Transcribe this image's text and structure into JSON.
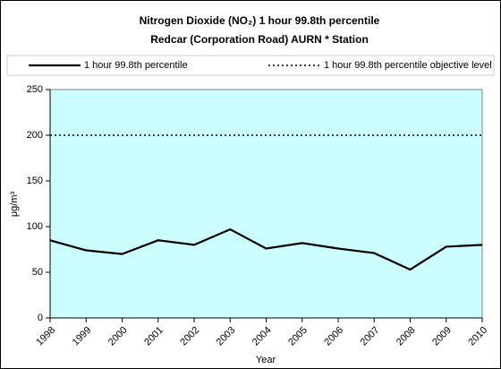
{
  "chart_data": {
    "type": "line",
    "title": [
      "Nitrogen Dioxide (NO₂) 1 hour 99.8th percentile",
      "Redcar (Corporation Road) AURN * Station"
    ],
    "xlabel": "Year",
    "ylabel": "μg/m³",
    "categories": [
      "1998",
      "1999",
      "2000",
      "2001",
      "2002",
      "2003",
      "2004",
      "2005",
      "2006",
      "2007",
      "2008",
      "2009",
      "2010"
    ],
    "series": [
      {
        "name": "1 hour 99.8th percentile",
        "color": "#000000",
        "style": "solid",
        "values": [
          85,
          74,
          70,
          85,
          80,
          97,
          76,
          82,
          76,
          71,
          53,
          78,
          80
        ]
      },
      {
        "name": "1 hour 99.8th percentile objective level",
        "color": "#000000",
        "style": "dotted",
        "values": [
          200,
          200,
          200,
          200,
          200,
          200,
          200,
          200,
          200,
          200,
          200,
          200,
          200
        ]
      }
    ],
    "ylim": [
      0,
      250
    ],
    "yticks": [
      0,
      50,
      100,
      150,
      200,
      250
    ],
    "plot_background": "#ccffff",
    "grid": false,
    "legend": "top"
  }
}
